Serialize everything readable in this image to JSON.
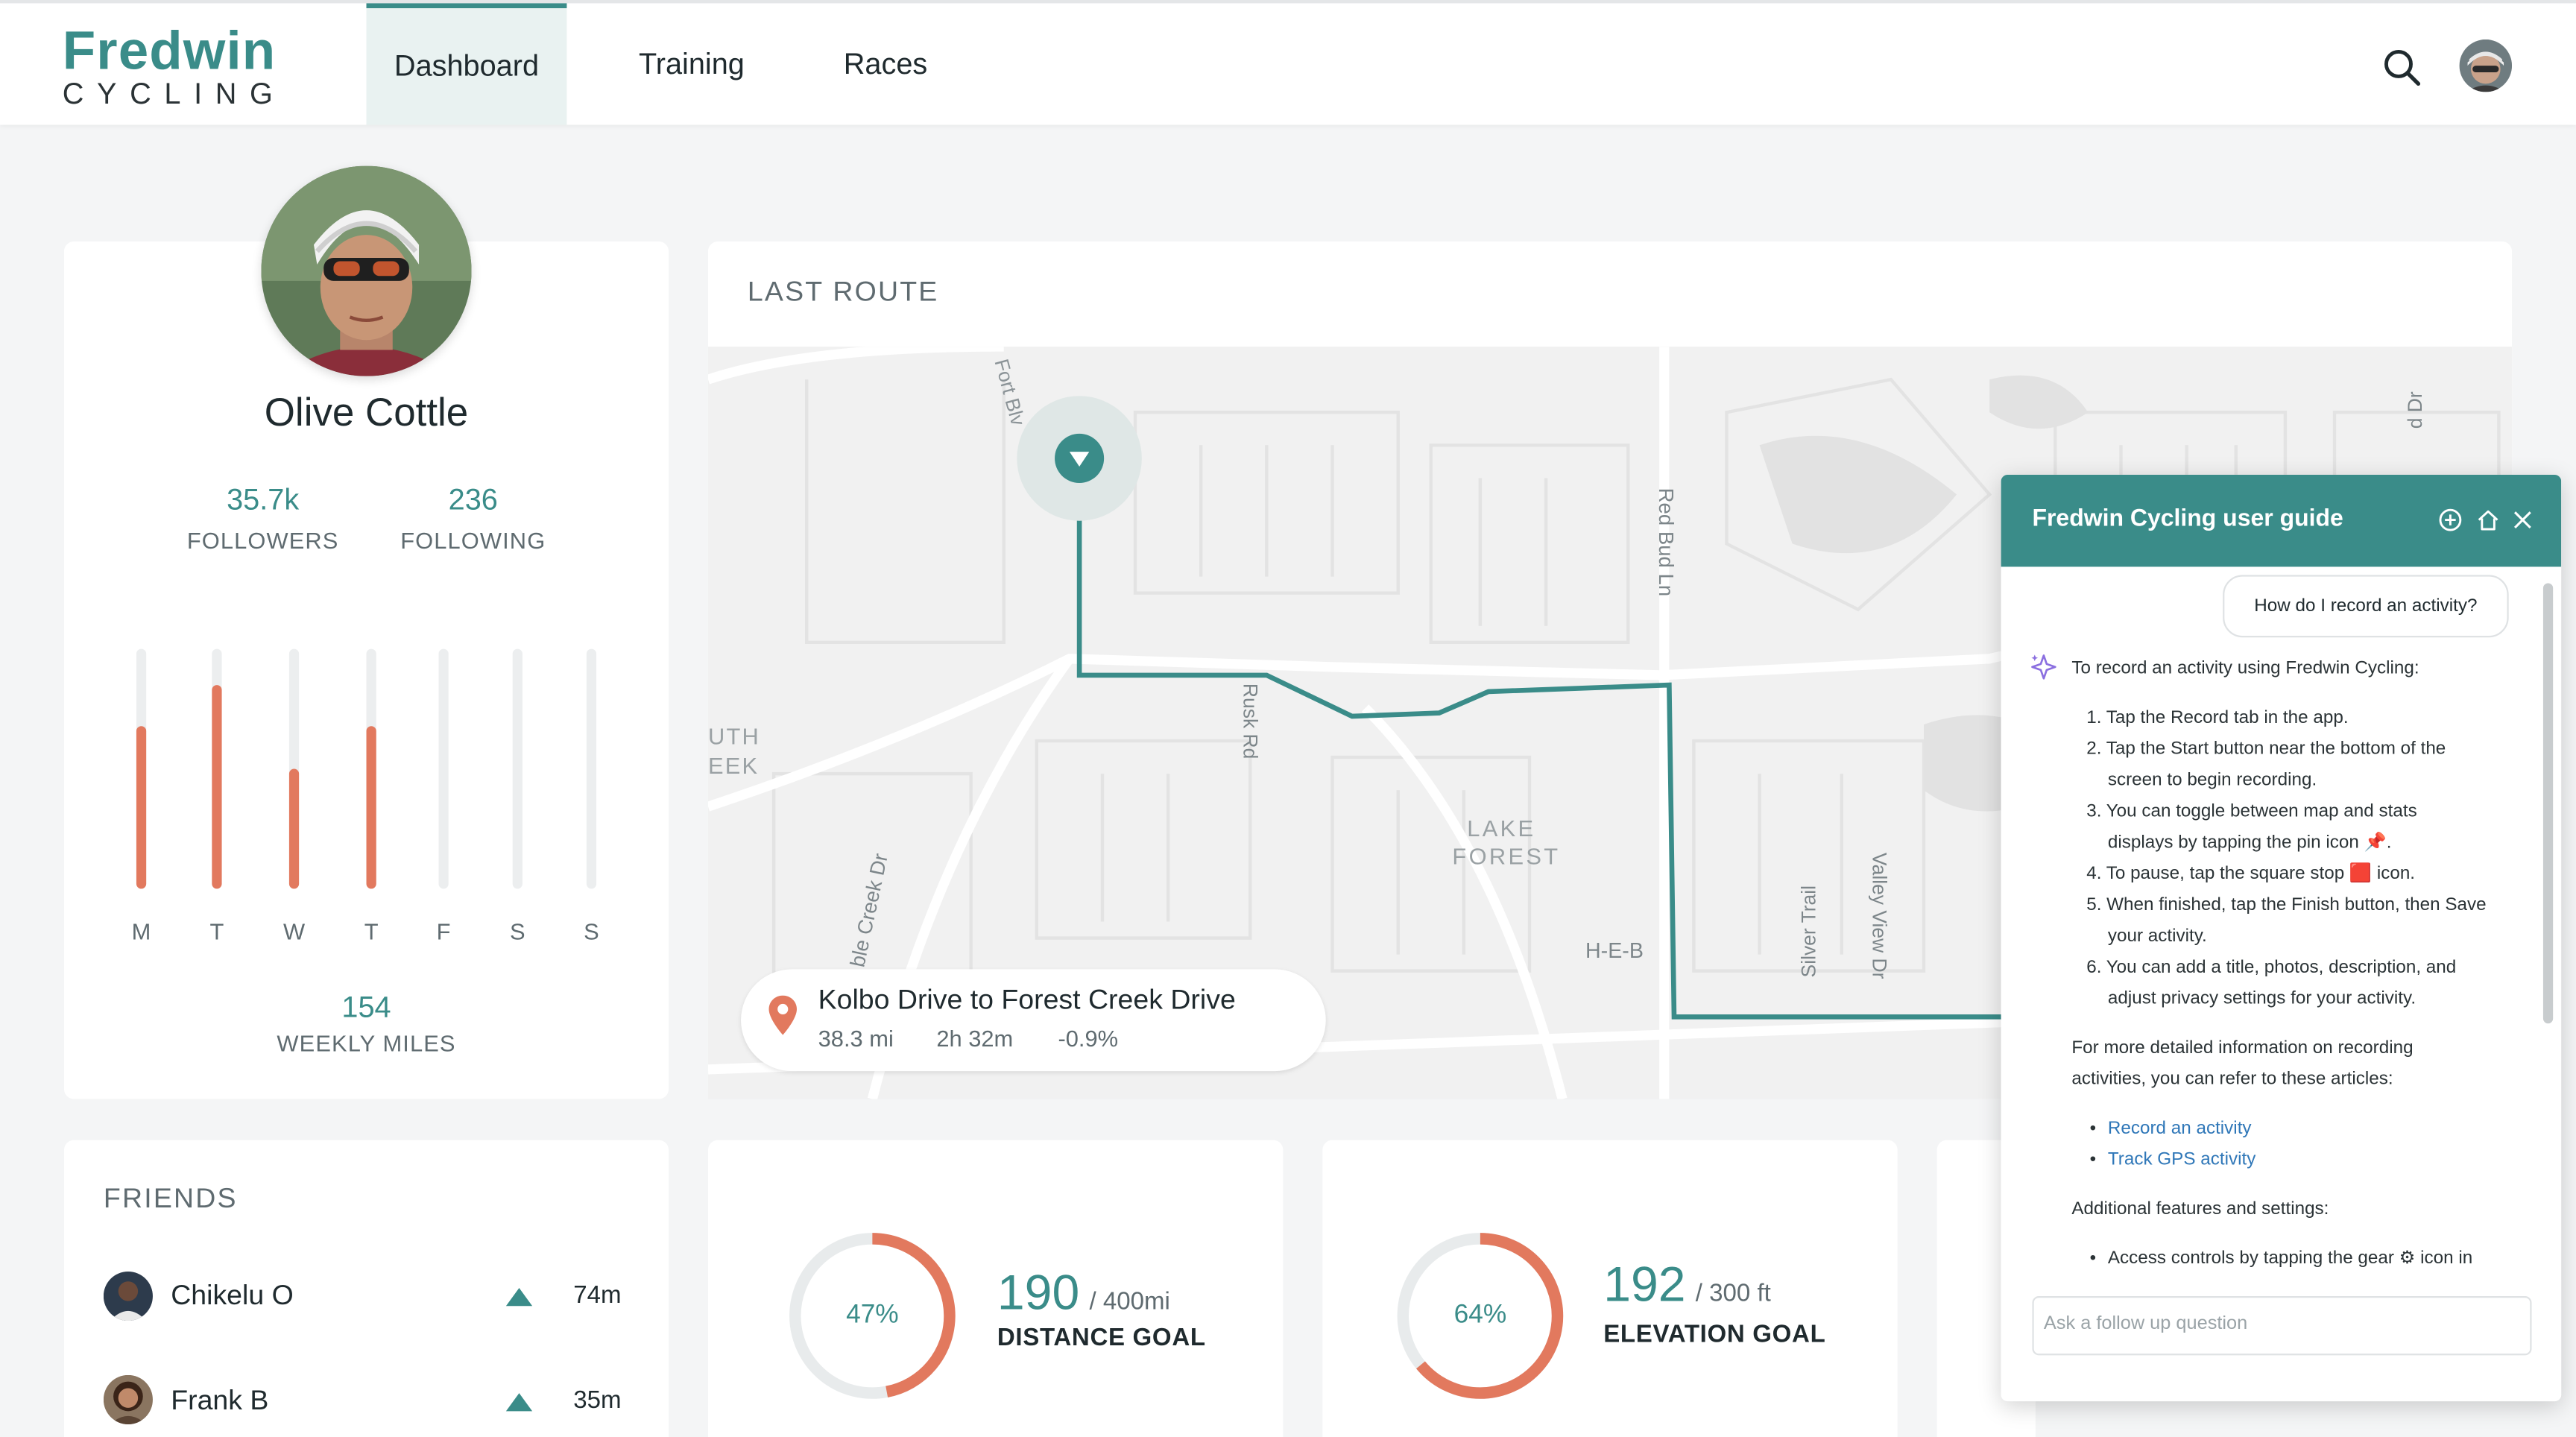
{
  "brand": {
    "name_top": "Fredwin",
    "name_bottom": "CYCLING"
  },
  "nav": {
    "tabs": [
      {
        "label": "Dashboard"
      },
      {
        "label": "Training"
      },
      {
        "label": "Races"
      }
    ]
  },
  "profile": {
    "name": "Olive Cottle",
    "followers": {
      "value": "35.7k",
      "label": "FOLLOWERS"
    },
    "following": {
      "value": "236",
      "label": "FOLLOWING"
    },
    "week_days": [
      "M",
      "T",
      "W",
      "T",
      "F",
      "S",
      "S"
    ],
    "week_levels": [
      0.68,
      0.85,
      0.5,
      0.68,
      0,
      0,
      0
    ],
    "weekly_miles": {
      "value": "154",
      "label": "WEEKLY MILES"
    }
  },
  "last_route": {
    "title": "LAST ROUTE",
    "name": "Kolbo Drive to Forest Creek Drive",
    "distance": "38.3 mi",
    "duration": "2h 32m",
    "grade": "-0.9%",
    "map_labels": {
      "fort": "Fort Blv",
      "red_bud": "Red Bud Ln",
      "rusk": "Rusk Rd",
      "creek": "ble Creek Dr",
      "lake1": "LAKE",
      "lake2": "FOREST",
      "heb": "H-E-B",
      "silver": "Silver Trail",
      "valley": "Valley View Dr",
      "uth": "UTH",
      "eek": "EEK",
      "dr": "d Dr"
    }
  },
  "friends": {
    "title": "FRIENDS",
    "items": [
      {
        "name": "Chikelu O",
        "value": "74m"
      },
      {
        "name": "Frank B",
        "value": "35m"
      }
    ]
  },
  "goals": [
    {
      "percent": "47%",
      "fraction": 0.47,
      "value": "190",
      "of": "/ 400mi",
      "label": "DISTANCE GOAL"
    },
    {
      "percent": "64%",
      "fraction": 0.64,
      "value": "192",
      "of": "/ 300 ft",
      "label": "ELEVATION GOAL"
    }
  ],
  "guide": {
    "title": "Fredwin Cycling user guide",
    "question": "How do I record an activity?",
    "intro": "To record an activity using Fredwin Cycling:",
    "steps": [
      "1. Tap the Record tab in the app.",
      "2. Tap the Start button near the bottom of the",
      "screen to begin recording.",
      "3. You can toggle between map and stats",
      "displays by tapping the pin icon 📌.",
      "4. To pause, tap the square stop 🟥 icon.",
      "5. When finished, tap the Finish button, then Save",
      "your activity.",
      "6. You can add a title, photos, description, and",
      "adjust privacy settings for your activity."
    ],
    "more_1": "For more detailed information on recording",
    "more_2": "activities, you can refer to these articles:",
    "links": [
      "Record an activity",
      "Track GPS activity"
    ],
    "additional": "Additional features and settings:",
    "feature_1": "Access controls by tapping the gear ⚙ icon in",
    "followup_placeholder": "Ask a follow up question"
  },
  "colors": {
    "accent": "#3a8c89",
    "bar": "#e2795e",
    "ring": "#e2795e"
  }
}
